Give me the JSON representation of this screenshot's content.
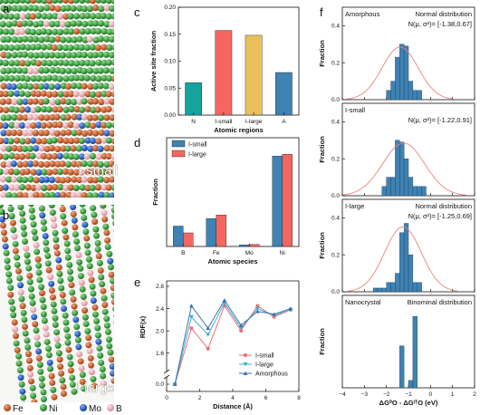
{
  "panel_labels": {
    "a": "a",
    "b": "b",
    "c": "c",
    "d": "d",
    "e": "e",
    "f": "f"
  },
  "sim_labels": {
    "top": "I-small",
    "bottom": "I-large"
  },
  "species_legend": [
    {
      "name": "Fe",
      "color": "#c9501d"
    },
    {
      "name": "Ni",
      "color": "#2e9a30"
    },
    {
      "name": "Mo",
      "color": "#1a56b8"
    },
    {
      "name": "B",
      "color": "#f0a8b4"
    }
  ],
  "chart_data": [
    {
      "id": "c",
      "type": "bar",
      "categories": [
        "N",
        "I-small",
        "I-large",
        "A"
      ],
      "values": [
        0.06,
        0.157,
        0.148,
        0.079
      ],
      "colors": [
        "#16a39d",
        "#f4665f",
        "#e9c05c",
        "#3f82b4"
      ],
      "ylabel": "Active site fraction",
      "xlabel": "Atomic regions",
      "ylim": [
        0.0,
        0.2
      ],
      "yticks": [
        "0.00",
        "0.05",
        "0.10",
        "0.15",
        "0.20"
      ]
    },
    {
      "id": "d",
      "type": "bar",
      "categories": [
        "B",
        "Fe",
        "Mo",
        "Ni"
      ],
      "series": [
        {
          "name": "I-small",
          "color": "#3f82b4",
          "values": [
            0.15,
            0.205,
            0.012,
            0.665
          ]
        },
        {
          "name": "I-large",
          "color": "#f4665f",
          "values": [
            0.1,
            0.232,
            0.015,
            0.678
          ]
        }
      ],
      "ylabel": "Fraction",
      "xlabel": "Atomic species",
      "ylim": [
        0.0,
        0.8
      ],
      "legend_position": "top-left"
    },
    {
      "id": "e",
      "type": "line",
      "x": [
        0.5,
        1.5,
        2.5,
        3.5,
        4.5,
        5.5,
        6.5,
        7.5
      ],
      "series": [
        {
          "name": "I-small",
          "color": "#f07070",
          "marker": "circle",
          "values": [
            0.0,
            2.05,
            1.68,
            2.45,
            2.0,
            2.45,
            2.25,
            2.38
          ]
        },
        {
          "name": "I-large",
          "color": "#3fa9c9",
          "marker": "triangle-down",
          "values": [
            0.0,
            2.25,
            1.93,
            2.5,
            2.05,
            2.4,
            2.28,
            2.38
          ]
        },
        {
          "name": "Amorphous",
          "color": "#3d73b3",
          "marker": "triangle-up",
          "values": [
            0.0,
            2.45,
            2.05,
            2.55,
            2.1,
            2.35,
            2.3,
            2.4
          ]
        }
      ],
      "ylabel": "RDF(x)",
      "xlabel": "Distance (Å)",
      "yticks": [
        "0.0",
        "1.6",
        "2.0",
        "2.4",
        "2.8"
      ],
      "xticks": [
        "0",
        "2",
        "4",
        "6",
        "8"
      ],
      "xlim": [
        0,
        8
      ],
      "broken_y_axis": true,
      "legend_position": "bottom-right"
    },
    {
      "id": "f",
      "type": "bar",
      "subtype": "histogram-stack",
      "xlabel": "ΔG⁰O - ΔGᴵᵀO (eV)",
      "ylabel": "Fraction",
      "xlim": [
        -4,
        2
      ],
      "xticks": [
        "−4",
        "−3",
        "−2",
        "−1",
        "0",
        "1",
        "2"
      ],
      "bin_width": 0.2,
      "bar_color": "#3f82b4",
      "curve_color": "#f08080",
      "panels": [
        {
          "title": "Amorphous",
          "dist_label": "Normal distribution",
          "params": "N(μ, σ²)= [-1.38,0.67]",
          "mu": -1.38,
          "sigma2": 0.67,
          "ylim": [
            0,
            0.5
          ],
          "yticks": [
            "0.0",
            "0.2",
            "0.4"
          ],
          "bins_left": [
            -2.0,
            -1.8,
            -1.6,
            -1.4,
            -1.2,
            -1.0,
            -0.8,
            -0.6
          ],
          "values": [
            0.05,
            0.1,
            0.23,
            0.3,
            0.29,
            0.1,
            0.05,
            0.05
          ]
        },
        {
          "title": "I-small",
          "dist_label": "",
          "params": "N(μ, σ²)= [-1.22,0.91]",
          "mu": -1.22,
          "sigma2": 0.91,
          "ylim": [
            0,
            0.5
          ],
          "yticks": [
            "0.0",
            "0.2",
            "0.4"
          ],
          "bins_left": [
            -2.2,
            -2.0,
            -1.8,
            -1.6,
            -1.4,
            -1.2,
            -1.0,
            -0.8,
            -0.6,
            -0.4
          ],
          "values": [
            0.05,
            0.1,
            0.1,
            0.3,
            0.29,
            0.2,
            0.1,
            0.05,
            0.05,
            0.05
          ]
        },
        {
          "title": "I-large",
          "dist_label": "Normal distribution",
          "params": "N(μ, σ²)= [-1.25,0.69]",
          "mu": -1.25,
          "sigma2": 0.69,
          "ylim": [
            0,
            0.5
          ],
          "yticks": [
            "0.0",
            "0.2",
            "0.4"
          ],
          "bins_left": [
            -2.6,
            -2.4,
            -2.2,
            -2.0,
            -1.8,
            -1.6,
            -1.4,
            -1.2,
            -1.0,
            -0.8,
            -0.6
          ],
          "values": [
            0.02,
            0.02,
            0.02,
            0.05,
            0.05,
            0.1,
            0.32,
            0.37,
            0.2,
            0.05,
            0.05
          ]
        },
        {
          "title": "Nanocrystal",
          "dist_label": "Binominal distribution",
          "params": "",
          "mu": null,
          "sigma2": null,
          "ylim": [
            0,
            0.75
          ],
          "yticks": [],
          "bins_left": [
            -1.4,
            -1.0,
            -0.8
          ],
          "values": [
            0.34,
            0.06,
            0.58
          ]
        }
      ]
    }
  ]
}
